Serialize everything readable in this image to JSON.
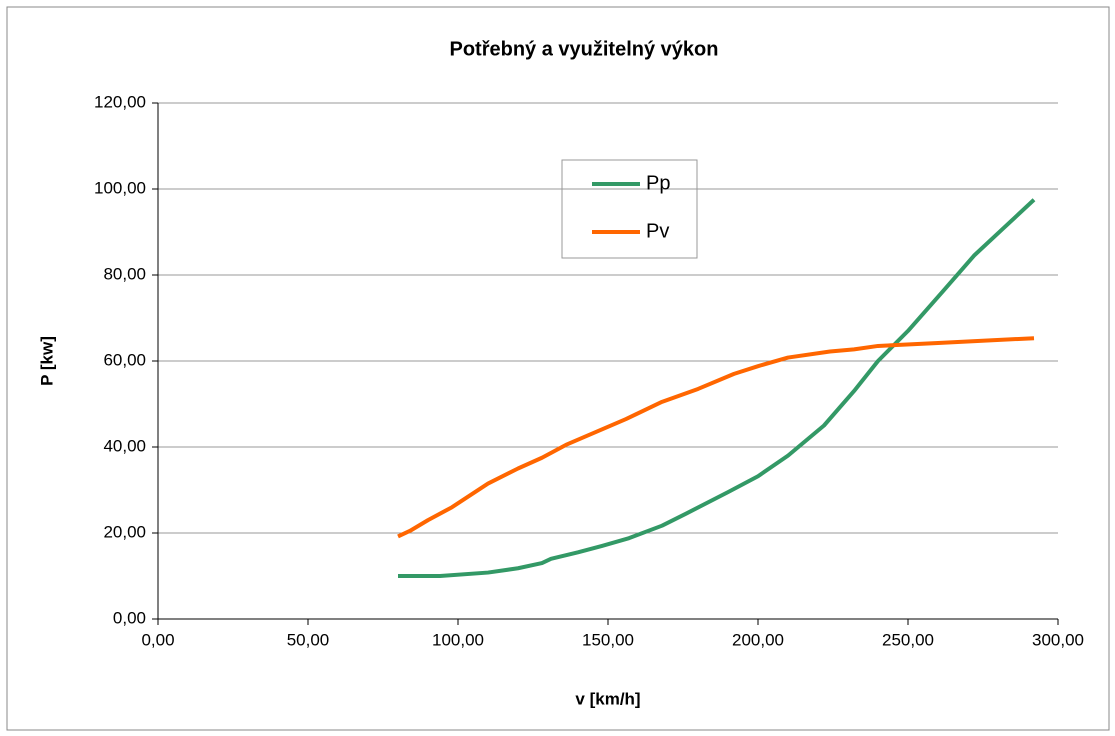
{
  "chart_data": {
    "type": "line",
    "title": "Potřebný a využitelný výkon",
    "xlabel": "v [km/h]",
    "ylabel": "P [kw]",
    "xlim": [
      0,
      300
    ],
    "xticks": [
      {
        "value": 0,
        "label": "0,00"
      },
      {
        "value": 50,
        "label": "50,00"
      },
      {
        "value": 100,
        "label": "100,00"
      },
      {
        "value": 150,
        "label": "150,00"
      },
      {
        "value": 200,
        "label": "200,00"
      },
      {
        "value": 250,
        "label": "250,00"
      },
      {
        "value": 300,
        "label": "300,00"
      }
    ],
    "ylim": [
      0,
      120
    ],
    "yticks": [
      {
        "value": 0,
        "label": "0,00"
      },
      {
        "value": 20,
        "label": "20,00"
      },
      {
        "value": 40,
        "label": "40,00"
      },
      {
        "value": 60,
        "label": "60,00"
      },
      {
        "value": 80,
        "label": "80,00"
      },
      {
        "value": 100,
        "label": "100,00"
      },
      {
        "value": 120,
        "label": "120,00"
      }
    ],
    "grid": true,
    "series": [
      {
        "name": "Pp",
        "color": "#339966",
        "x": [
          80,
          94,
          110,
          120,
          128,
          131,
          140,
          148,
          157,
          168,
          176,
          190,
          200,
          210,
          222,
          232,
          240,
          250,
          262,
          272,
          282,
          292
        ],
        "values": [
          10,
          10,
          10.8,
          11.8,
          13,
          14,
          15.5,
          17,
          18.8,
          21.7,
          24.5,
          29.5,
          33.2,
          38,
          45,
          53,
          60,
          67,
          76.5,
          84.5,
          91,
          97.5
        ]
      },
      {
        "name": "Pv",
        "color": "#ff6600",
        "x": [
          80,
          84,
          90,
          98,
          110,
          120,
          128,
          136,
          146,
          156,
          168,
          180,
          192,
          200,
          210,
          224,
          232,
          240,
          260,
          292
        ],
        "values": [
          19.2,
          20.5,
          23,
          26,
          31.5,
          35,
          37.5,
          40.5,
          43.5,
          46.5,
          50.5,
          53.5,
          57,
          58.8,
          60.8,
          62.2,
          62.7,
          63.5,
          64.2,
          65.3
        ]
      }
    ]
  }
}
